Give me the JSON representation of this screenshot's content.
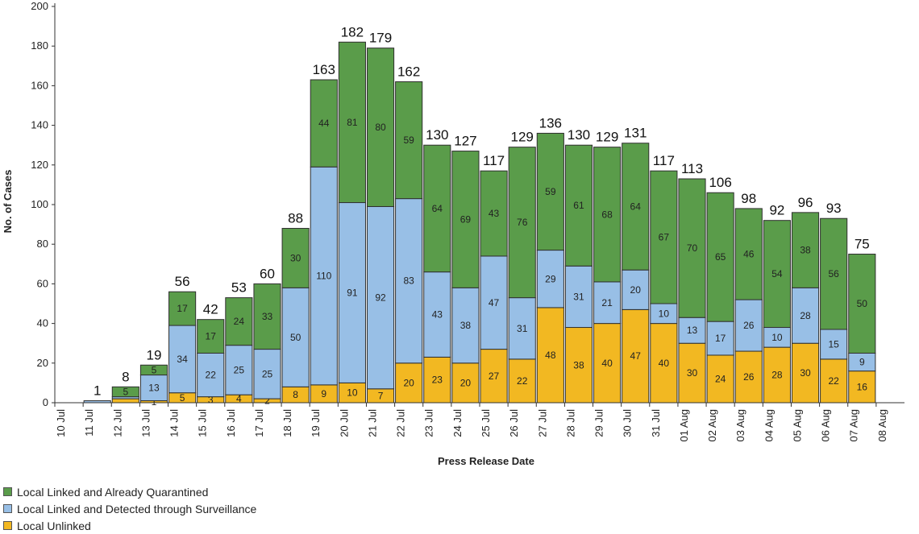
{
  "chart_data": {
    "type": "bar",
    "stacked": true,
    "xlabel": "Press Release Date",
    "ylabel": "No. of Cases",
    "ylim": [
      0,
      200
    ],
    "yticks": [
      0,
      20,
      40,
      60,
      80,
      100,
      120,
      140,
      160,
      180,
      200
    ],
    "grid": false,
    "legend_position": "bottom-left",
    "categories": [
      "10 Jul",
      "11 Jul",
      "12 Jul",
      "13 Jul",
      "14 Jul",
      "15 Jul",
      "16 Jul",
      "17 Jul",
      "18 Jul",
      "19 Jul",
      "20 Jul",
      "21 Jul",
      "22 Jul",
      "23 Jul",
      "24 Jul",
      "25 Jul",
      "26 Jul",
      "27 Jul",
      "28 Jul",
      "29 Jul",
      "30 Jul",
      "31 Jul",
      "01 Aug",
      "02 Aug",
      "03 Aug",
      "04 Aug",
      "05 Aug",
      "06 Aug",
      "07 Aug",
      "08 Aug"
    ],
    "totals": [
      null,
      1,
      8,
      19,
      56,
      42,
      53,
      60,
      88,
      163,
      182,
      179,
      162,
      130,
      127,
      117,
      129,
      136,
      130,
      129,
      131,
      117,
      113,
      106,
      98,
      92,
      96,
      93,
      75,
      null
    ],
    "series": [
      {
        "name": "Local Unlinked",
        "color": "#f2b822",
        "values": [
          0,
          0,
          2,
          1,
          5,
          3,
          4,
          2,
          8,
          9,
          10,
          7,
          20,
          23,
          20,
          27,
          22,
          48,
          38,
          40,
          47,
          40,
          30,
          24,
          26,
          28,
          30,
          22,
          16,
          0
        ],
        "labels": [
          null,
          null,
          null,
          "1",
          "5",
          "3",
          "4",
          "2",
          "8",
          "9",
          "10",
          "7",
          "20",
          "23",
          "20",
          "27",
          "22",
          "48",
          "38",
          "40",
          "47",
          "40",
          "30",
          "24",
          "26",
          "28",
          "30",
          "22",
          "16",
          null
        ]
      },
      {
        "name": "Local Linked and Detected through Surveillance",
        "color": "#98bfe6",
        "values": [
          0,
          1,
          1,
          13,
          34,
          22,
          25,
          25,
          50,
          110,
          91,
          92,
          83,
          43,
          38,
          47,
          31,
          29,
          31,
          21,
          20,
          10,
          13,
          17,
          26,
          10,
          28,
          15,
          9,
          0
        ],
        "labels": [
          null,
          null,
          null,
          "13",
          "34",
          "22",
          "25",
          "25",
          "50",
          "110",
          "91",
          "92",
          "83",
          "43",
          "38",
          "47",
          "31",
          "29",
          "31",
          "21",
          "20",
          "10",
          "13",
          "17",
          "26",
          "10",
          "28",
          "15",
          "9",
          null
        ]
      },
      {
        "name": "Local Linked and Already Quarantined",
        "color": "#5a9c4a",
        "values": [
          0,
          0,
          5,
          5,
          17,
          17,
          24,
          33,
          30,
          44,
          81,
          80,
          59,
          64,
          69,
          43,
          76,
          59,
          61,
          68,
          64,
          67,
          70,
          65,
          46,
          54,
          38,
          56,
          50,
          0
        ],
        "labels": [
          null,
          null,
          "5",
          "5",
          "17",
          "17",
          "24",
          "33",
          "30",
          "44",
          "81",
          "80",
          "59",
          "64",
          "69",
          "43",
          "76",
          "59",
          "61",
          "68",
          "64",
          "67",
          "70",
          "65",
          "46",
          "54",
          "38",
          "56",
          "50",
          null
        ]
      }
    ]
  },
  "legend": {
    "items": [
      {
        "label": "Local Linked and Already Quarantined",
        "color": "#5a9c4a"
      },
      {
        "label": "Local Linked and Detected through Surveillance",
        "color": "#98bfe6"
      },
      {
        "label": "Local Unlinked",
        "color": "#f2b822"
      }
    ]
  }
}
